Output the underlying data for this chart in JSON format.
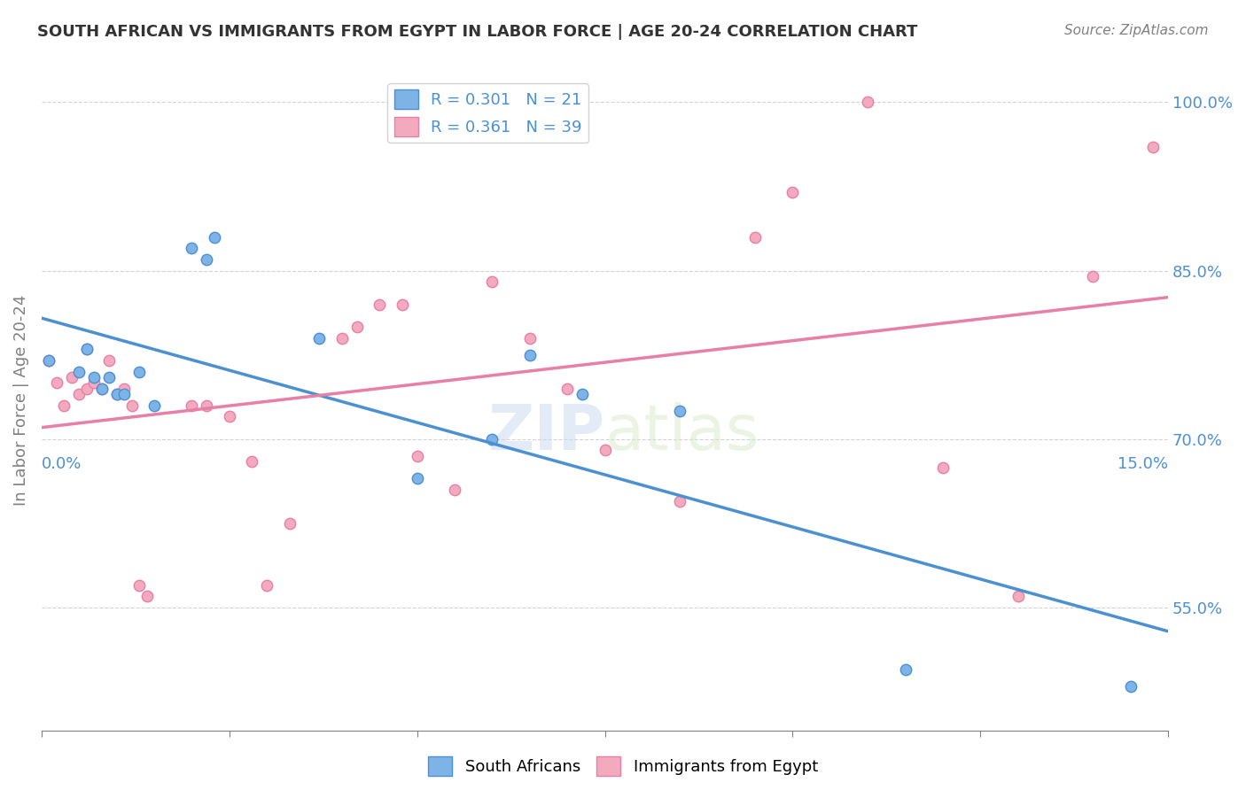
{
  "title": "SOUTH AFRICAN VS IMMIGRANTS FROM EGYPT IN LABOR FORCE | AGE 20-24 CORRELATION CHART",
  "source": "Source: ZipAtlas.com",
  "ylabel": "In Labor Force | Age 20-24",
  "xlim": [
    0.0,
    0.15
  ],
  "ylim": [
    0.44,
    1.03
  ],
  "yticks": [
    0.55,
    0.7,
    0.85,
    1.0
  ],
  "ytick_labels": [
    "55.0%",
    "70.0%",
    "85.0%",
    "100.0%"
  ],
  "xticks": [
    0.0,
    0.025,
    0.05,
    0.075,
    0.1,
    0.125,
    0.15
  ],
  "xtick_labels": [
    "0.0%",
    "",
    "",
    "",
    "",
    "",
    "15.0%"
  ],
  "blue_color": "#7EB3E8",
  "pink_color": "#F4AABE",
  "blue_line_color": "#4C90D4",
  "pink_line_color": "#E87FA6",
  "legend_R_blue": "0.301",
  "legend_N_blue": "21",
  "legend_R_pink": "0.361",
  "legend_N_pink": "39",
  "watermark": "ZIPatlas",
  "south_african_x": [
    0.001,
    0.005,
    0.006,
    0.007,
    0.008,
    0.009,
    0.01,
    0.011,
    0.013,
    0.015,
    0.02,
    0.022,
    0.023,
    0.037,
    0.05,
    0.06,
    0.065,
    0.072,
    0.085,
    0.115,
    0.145
  ],
  "south_african_y": [
    0.77,
    0.76,
    0.78,
    0.755,
    0.745,
    0.755,
    0.74,
    0.74,
    0.76,
    0.73,
    0.87,
    0.86,
    0.88,
    0.79,
    0.665,
    0.7,
    0.775,
    0.74,
    0.725,
    0.495,
    0.48
  ],
  "egypt_x": [
    0.001,
    0.002,
    0.003,
    0.004,
    0.005,
    0.006,
    0.006,
    0.007,
    0.008,
    0.009,
    0.01,
    0.011,
    0.012,
    0.013,
    0.014,
    0.02,
    0.022,
    0.025,
    0.028,
    0.03,
    0.033,
    0.04,
    0.042,
    0.045,
    0.048,
    0.05,
    0.055,
    0.06,
    0.065,
    0.07,
    0.075,
    0.085,
    0.095,
    0.1,
    0.11,
    0.12,
    0.13,
    0.14,
    0.148
  ],
  "egypt_y": [
    0.77,
    0.75,
    0.73,
    0.755,
    0.74,
    0.745,
    0.78,
    0.75,
    0.745,
    0.77,
    0.74,
    0.745,
    0.73,
    0.57,
    0.56,
    0.73,
    0.73,
    0.72,
    0.68,
    0.57,
    0.625,
    0.79,
    0.8,
    0.82,
    0.82,
    0.685,
    0.655,
    0.84,
    0.79,
    0.745,
    0.69,
    0.645,
    0.88,
    0.92,
    1.0,
    0.675,
    0.56,
    0.845,
    0.96
  ],
  "blue_dot_size": 80,
  "pink_dot_size": 80
}
